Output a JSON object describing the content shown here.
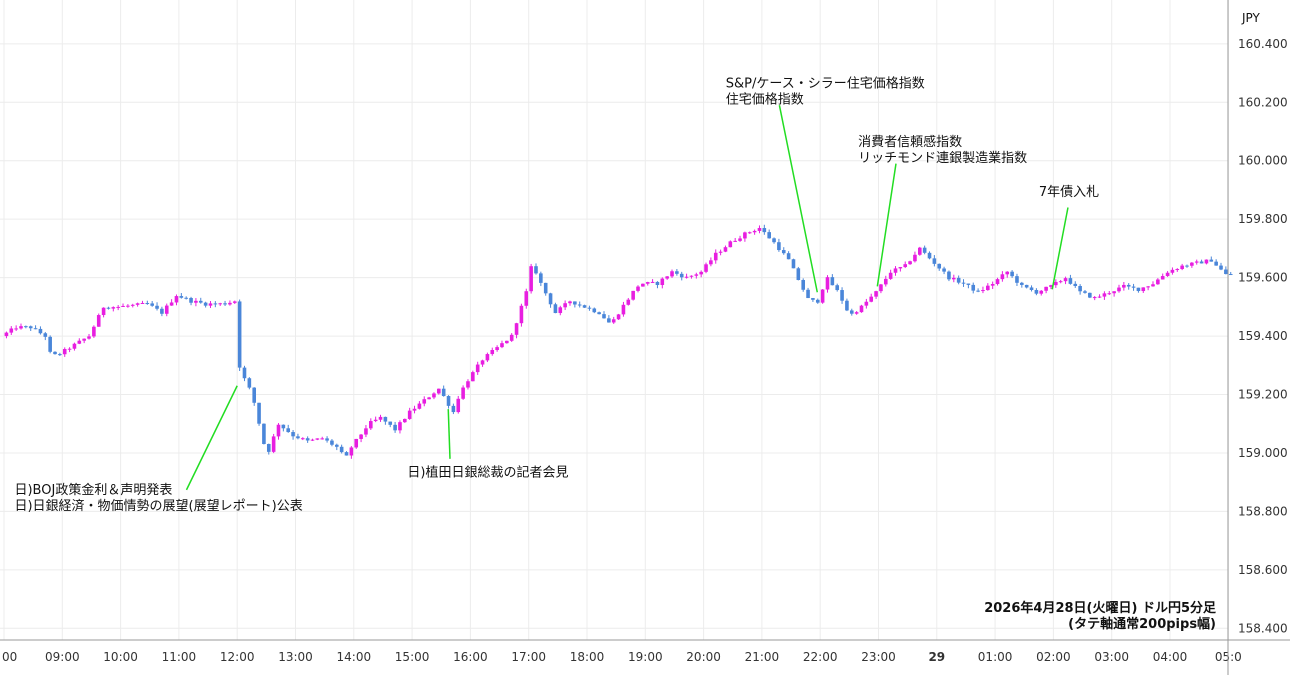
{
  "chart_data": {
    "type": "candlestick",
    "currency": "JPY",
    "caption": [
      "2026年4月28日(火曜日) ドル円5分足",
      "(タテ軸通常200pips幅)"
    ],
    "y_axis": {
      "min": 158.36,
      "max": 160.55,
      "ticks": [
        "160.400",
        "160.200",
        "160.000",
        "159.800",
        "159.600",
        "159.400",
        "159.200",
        "159.000",
        "158.800",
        "158.600",
        "158.400"
      ]
    },
    "x_axis": {
      "ticks": [
        {
          "label": "00",
          "t": 0
        },
        {
          "label": "09:00",
          "t": 1
        },
        {
          "label": "10:00",
          "t": 2
        },
        {
          "label": "11:00",
          "t": 3
        },
        {
          "label": "12:00",
          "t": 4
        },
        {
          "label": "13:00",
          "t": 5
        },
        {
          "label": "14:00",
          "t": 6
        },
        {
          "label": "15:00",
          "t": 7
        },
        {
          "label": "16:00",
          "t": 8
        },
        {
          "label": "17:00",
          "t": 9
        },
        {
          "label": "18:00",
          "t": 10
        },
        {
          "label": "19:00",
          "t": 11
        },
        {
          "label": "20:00",
          "t": 12
        },
        {
          "label": "21:00",
          "t": 13
        },
        {
          "label": "22:00",
          "t": 14
        },
        {
          "label": "23:00",
          "t": 15
        },
        {
          "label": "29",
          "t": 16,
          "bold": true
        },
        {
          "label": "01:00",
          "t": 17
        },
        {
          "label": "02:00",
          "t": 18
        },
        {
          "label": "03:00",
          "t": 19
        },
        {
          "label": "04:00",
          "t": 20
        },
        {
          "label": "05:0",
          "t": 21
        }
      ]
    },
    "price_path": [
      [
        0.0,
        159.4
      ],
      [
        0.25,
        159.43
      ],
      [
        0.5,
        159.43
      ],
      [
        0.75,
        159.4
      ],
      [
        0.85,
        159.33
      ],
      [
        1.0,
        159.34
      ],
      [
        1.25,
        159.37
      ],
      [
        1.5,
        159.4
      ],
      [
        1.75,
        159.5
      ],
      [
        2.0,
        159.5
      ],
      [
        2.5,
        159.51
      ],
      [
        2.75,
        159.48
      ],
      [
        3.0,
        159.54
      ],
      [
        3.25,
        159.52
      ],
      [
        3.5,
        159.51
      ],
      [
        3.8,
        159.51
      ],
      [
        4.0,
        159.52
      ],
      [
        4.02,
        159.36
      ],
      [
        4.1,
        159.28
      ],
      [
        4.3,
        159.2
      ],
      [
        4.55,
        158.99
      ],
      [
        4.75,
        159.1
      ],
      [
        5.0,
        159.06
      ],
      [
        5.25,
        159.04
      ],
      [
        5.5,
        159.05
      ],
      [
        5.75,
        159.02
      ],
      [
        5.9,
        158.98
      ],
      [
        6.0,
        159.02
      ],
      [
        6.3,
        159.1
      ],
      [
        6.5,
        159.12
      ],
      [
        6.75,
        159.08
      ],
      [
        7.0,
        159.14
      ],
      [
        7.25,
        159.18
      ],
      [
        7.5,
        159.22
      ],
      [
        7.75,
        159.14
      ],
      [
        7.85,
        159.2
      ],
      [
        8.0,
        159.25
      ],
      [
        8.25,
        159.32
      ],
      [
        8.5,
        159.36
      ],
      [
        8.75,
        159.4
      ],
      [
        9.0,
        159.55
      ],
      [
        9.1,
        159.65
      ],
      [
        9.25,
        159.58
      ],
      [
        9.5,
        159.48
      ],
      [
        9.75,
        159.52
      ],
      [
        10.0,
        159.5
      ],
      [
        10.25,
        159.48
      ],
      [
        10.45,
        159.44
      ],
      [
        10.65,
        159.5
      ],
      [
        10.9,
        159.57
      ],
      [
        11.0,
        159.58
      ],
      [
        11.25,
        159.58
      ],
      [
        11.5,
        159.62
      ],
      [
        11.75,
        159.6
      ],
      [
        12.0,
        159.62
      ],
      [
        12.25,
        159.68
      ],
      [
        12.5,
        159.72
      ],
      [
        12.75,
        159.75
      ],
      [
        13.0,
        159.77
      ],
      [
        13.25,
        159.72
      ],
      [
        13.5,
        159.66
      ],
      [
        13.7,
        159.58
      ],
      [
        13.85,
        159.52
      ],
      [
        14.0,
        159.52
      ],
      [
        14.15,
        159.6
      ],
      [
        14.35,
        159.55
      ],
      [
        14.55,
        159.47
      ],
      [
        14.75,
        159.5
      ],
      [
        15.0,
        159.55
      ],
      [
        15.25,
        159.62
      ],
      [
        15.5,
        159.64
      ],
      [
        15.75,
        159.7
      ],
      [
        16.0,
        159.65
      ],
      [
        16.25,
        159.6
      ],
      [
        16.5,
        159.58
      ],
      [
        16.75,
        159.55
      ],
      [
        17.0,
        159.58
      ],
      [
        17.25,
        159.62
      ],
      [
        17.5,
        159.57
      ],
      [
        17.75,
        159.55
      ],
      [
        18.0,
        159.57
      ],
      [
        18.25,
        159.6
      ],
      [
        18.5,
        159.55
      ],
      [
        18.75,
        159.53
      ],
      [
        19.0,
        159.55
      ],
      [
        19.25,
        159.57
      ],
      [
        19.5,
        159.56
      ],
      [
        19.75,
        159.58
      ],
      [
        20.0,
        159.62
      ],
      [
        20.25,
        159.64
      ],
      [
        20.5,
        159.65
      ],
      [
        20.75,
        159.66
      ],
      [
        21.0,
        159.61
      ]
    ],
    "annotations": [
      {
        "lines": [
          "日)BOJ政策金利＆声明発表",
          "日)日銀経済・物価情勢の展望(展望レポート)公表"
        ],
        "t": 4.0,
        "price": 159.23,
        "label_price": 158.86,
        "label_t": 0.18
      },
      {
        "lines": [
          "日)植田日銀総裁の記者会見"
        ],
        "t": 7.62,
        "price": 159.15,
        "label_price": 158.92,
        "label_t": 6.92
      },
      {
        "lines": [
          "S&P/ケース・シラー住宅価格指数",
          "住宅価格指数"
        ],
        "t": 13.95,
        "price": 159.55,
        "label_price": 160.25,
        "label_t": 12.38
      },
      {
        "lines": [
          "消費者信頼感指数",
          "リッチモンド連銀製造業指数"
        ],
        "t": 14.98,
        "price": 159.57,
        "label_price": 160.05,
        "label_t": 14.65
      },
      {
        "lines": [
          "7年債入札"
        ],
        "t": 17.98,
        "price": 159.56,
        "label_price": 159.88,
        "label_t": 17.75
      }
    ]
  }
}
